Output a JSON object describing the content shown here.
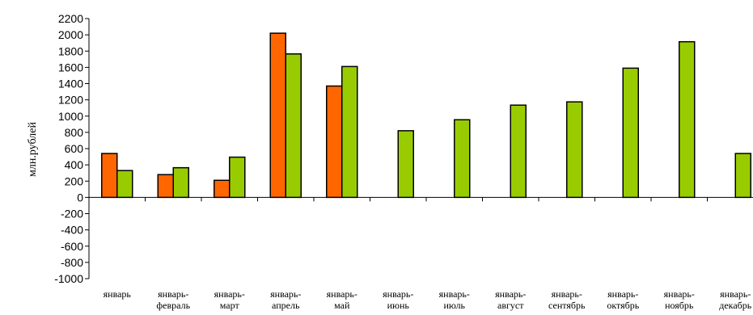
{
  "chart_data": {
    "type": "bar",
    "title": "",
    "xlabel": "",
    "ylabel": "млн.рублей",
    "ylim": [
      -1000,
      2200
    ],
    "ytick_step": 200,
    "grid": false,
    "legend": "none",
    "categories": [
      [
        "январь"
      ],
      [
        "январь-",
        "февраль"
      ],
      [
        "январь-",
        "март"
      ],
      [
        "январь-",
        "апрель"
      ],
      [
        "январь-",
        "май"
      ],
      [
        "январь-",
        "июнь"
      ],
      [
        "январь-",
        "июль"
      ],
      [
        "январь-",
        "август"
      ],
      [
        "январь-",
        "сентябрь"
      ],
      [
        "январь-",
        "октябрь"
      ],
      [
        "январь-",
        "ноябрь"
      ],
      [
        "январь-",
        "декабрь"
      ]
    ],
    "series": [
      {
        "color": "#ff6600",
        "values": [
          540,
          280,
          210,
          2020,
          1370,
          null,
          null,
          null,
          null,
          null,
          null,
          null
        ]
      },
      {
        "color": "#99cc00",
        "values": [
          330,
          365,
          495,
          1765,
          1610,
          820,
          955,
          1135,
          1175,
          1590,
          1915,
          540
        ]
      }
    ]
  }
}
